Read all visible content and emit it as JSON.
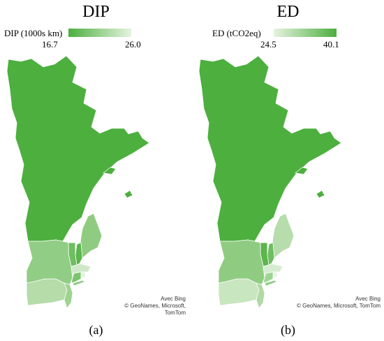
{
  "panels": [
    {
      "id": "a",
      "title": "DIP",
      "legend": {
        "label": "DIP (1000s km)",
        "min": "16.7",
        "max": "26.0",
        "gradient_from": "#4caf3e",
        "gradient_to": "#e6f3e0"
      },
      "credit": {
        "line1": "Avec Bing",
        "line2": "© GeoNames, Microsoft, TomTom"
      },
      "caption": "(a)",
      "colors": {
        "quebec": "#4caf3e",
        "maine": "#8fcc81",
        "new_hampshire": "#5cb54d",
        "vermont": "#6fbe61",
        "new_york": "#91cd84",
        "massachusetts": "#cfe8c8",
        "connecticut": "#7cc36e",
        "rhode_island": "#e3f2de",
        "pennsylvania": "#b5dca9",
        "new_jersey": "#9ed391"
      }
    },
    {
      "id": "b",
      "title": "ED",
      "legend": {
        "label": "ED (tCO2eq)",
        "min": "24.5",
        "max": "40.1",
        "gradient_from": "#e6f3e0",
        "gradient_to": "#4caf3e"
      },
      "credit": {
        "line1": "Avec Bing",
        "line2": "© GeoNames, Microsoft, TomTom"
      },
      "caption": "(b)",
      "colors": {
        "quebec": "#4caf3e",
        "maine": "#b8ddad",
        "new_hampshire": "#6fbe61",
        "vermont": "#5cb54d",
        "new_york": "#8fcc81",
        "massachusetts": "#d6ecd0",
        "connecticut": "#9fd493",
        "rhode_island": "#e8f5e4",
        "pennsylvania": "#c8e6bf",
        "new_jersey": "#b0d9a4"
      }
    }
  ]
}
